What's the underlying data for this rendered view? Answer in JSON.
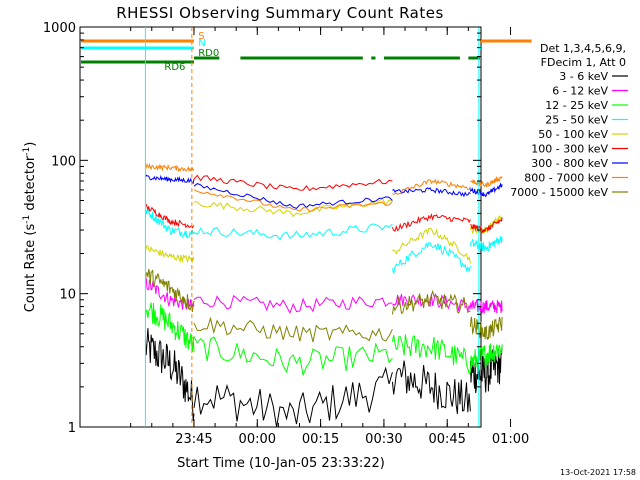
{
  "chart_data": {
    "type": "line",
    "title": "RHESSI Observing Summary Count Rates",
    "xlabel": "Start Time (10-Jan-05 23:33:22)",
    "ylabel_main": "Count Rate (s",
    "ylabel_sup1": "-1",
    "ylabel_mid": " detector",
    "ylabel_sup2": "-1",
    "ylabel_end": ")",
    "y_scale": "log",
    "ylim": [
      1,
      1000
    ],
    "xlim_min": [
      -15,
      80
    ],
    "y_ticks": [
      {
        "value": 1,
        "label": "1"
      },
      {
        "value": 10,
        "label": "10"
      },
      {
        "value": 100,
        "label": "100"
      },
      {
        "value": 1000,
        "label": "1000"
      }
    ],
    "x_ticks": [
      {
        "value": 12,
        "label": "23:45"
      },
      {
        "value": 27,
        "label": "00:00"
      },
      {
        "value": 42,
        "label": "00:15"
      },
      {
        "value": 57,
        "label": "00:30"
      },
      {
        "value": 72,
        "label": "00:45"
      },
      {
        "value": 87,
        "label": "01:00"
      }
    ],
    "legend_header": [
      "Det 1,3,4,5,6,9,",
      "FDecim 1, Att 0"
    ],
    "legend_position": "right",
    "series": [
      {
        "name": "3 - 6 keV",
        "color": "#000000"
      },
      {
        "name": "6 - 12 keV",
        "color": "#ff00ff"
      },
      {
        "name": "12 - 25 keV",
        "color": "#00ff00"
      },
      {
        "name": "25 - 50 keV",
        "color": "#00ffff"
      },
      {
        "name": "50 - 100 keV",
        "color": "#d4d400"
      },
      {
        "name": "100 - 300 keV",
        "color": "#ff0000"
      },
      {
        "name": "300 - 800 keV",
        "color": "#0000ff"
      },
      {
        "name": "800 - 7000 keV",
        "color": "#ff8000"
      },
      {
        "name": "7000 - 15000 keV",
        "color": "#808000"
      }
    ],
    "flags": [
      {
        "label": "S",
        "color": "#ff8000"
      },
      {
        "label": "N",
        "color": "#00ffff"
      },
      {
        "label": "RD0",
        "color": "#008000"
      },
      {
        "label": "RD6",
        "color": "#008000"
      }
    ],
    "timestamp": "13-Oct-2021 17:58"
  }
}
